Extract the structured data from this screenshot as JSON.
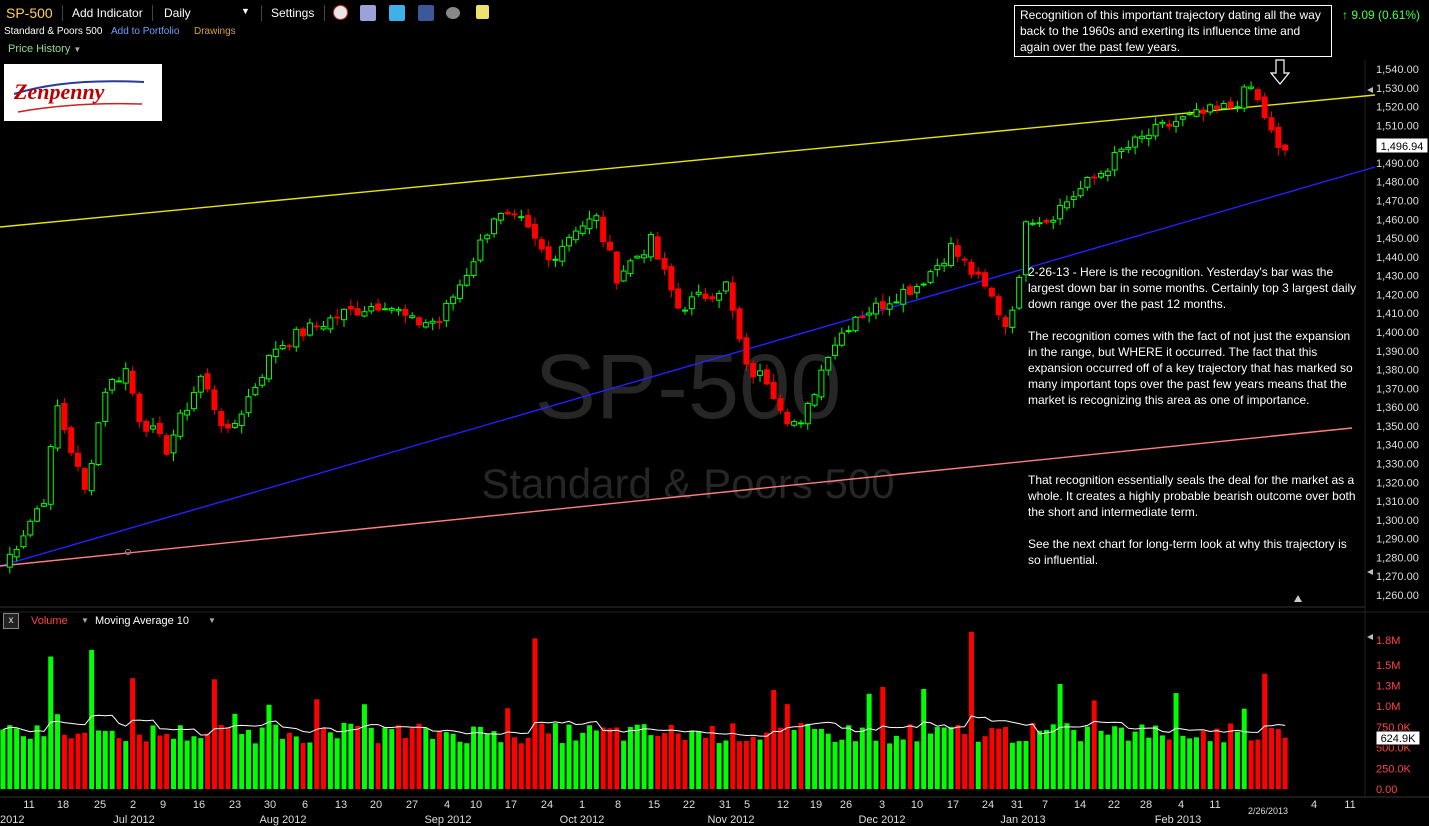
{
  "toolbar": {
    "symbol": "SP-500",
    "add_indicator": "Add Indicator",
    "period": "Daily",
    "settings": "Settings"
  },
  "subbar": {
    "name": "Standard & Poors 500",
    "add_portfolio": "Add to Portfolio",
    "drawings": "Drawings"
  },
  "price_history_label": "Price History",
  "logo_text": "Zenpenny",
  "change_text": "9.09 (0.61%)",
  "watermark": {
    "symbol": "SP-500",
    "name": "Standard & Poors 500"
  },
  "top_note": "Recognition of this important trajectory dating all the way back to the 1960s and exerting its influence time and again over the past few years.",
  "notes": [
    "2-26-13 - Here is the recognition. Yesterday's bar was the largest down bar in some months. Certainly top 3 largest daily down range over the past 12 months.",
    "The recognition comes with the fact of not just the expansion in the range, but WHERE it occurred. The fact that this expansion occurred off of a key trajectory that has marked so many important tops over the past few years means that the market is recognizing this area as one of importance.",
    "That recognition essentially seals the deal for the market as a whole. It creates a highly probable bearish outcome over both the short and intermediate term.",
    "See the next chart for long-term look at why this trajectory is so influential."
  ],
  "volume_header": {
    "close": "x",
    "label": "Volume",
    "ma": "Moving Average 10"
  },
  "colors": {
    "up": "#00ff00",
    "down": "#ff0000",
    "yellow_line": "#e6e600",
    "blue_line": "#2222ff",
    "salmon_line": "#ff7f7f",
    "ma_line": "#ffffff"
  },
  "chart_data": {
    "type": "candlestick",
    "price_axis": {
      "ticks": [
        "1,540.00",
        "1,530.00",
        "1,520.00",
        "1,510.00",
        "1,500.00",
        "1,490.00",
        "1,480.00",
        "1,470.00",
        "1,460.00",
        "1,450.00",
        "1,440.00",
        "1,430.00",
        "1,420.00",
        "1,410.00",
        "1,400.00",
        "1,390.00",
        "1,380.00",
        "1,370.00",
        "1,360.00",
        "1,350.00",
        "1,340.00",
        "1,330.00",
        "1,320.00",
        "1,310.00",
        "1,300.00",
        "1,290.00",
        "1,280.00",
        "1,270.00",
        "1,260.00"
      ],
      "last_price": "1,496.94"
    },
    "volume_axis": {
      "ticks": [
        "1.8M",
        "1.5M",
        "1.3M",
        "1.0M",
        "750.0K",
        "500.0K",
        "250.0K",
        "0.00"
      ],
      "last_ma": "624.9K"
    },
    "day_labels": [
      "11",
      "18",
      "25",
      "2",
      "9",
      "16",
      "23",
      "30",
      "6",
      "13",
      "20",
      "27",
      "4",
      "10",
      "17",
      "24",
      "1",
      "8",
      "15",
      "22",
      "31",
      "5",
      "12",
      "19",
      "26",
      "3",
      "10",
      "17",
      "24",
      "31",
      "7",
      "14",
      "22",
      "28",
      "4",
      "11",
      "2/26/2013",
      "4",
      "11"
    ],
    "month_labels": [
      "2012",
      "Jul 2012",
      "Aug 2012",
      "Sep 2012",
      "Oct 2012",
      "Nov 2012",
      "Dec 2012",
      "Jan 2013",
      "Feb 2013"
    ],
    "anchors": [
      {
        "day": 0,
        "price": 1275
      },
      {
        "day": 6,
        "price": 1312
      },
      {
        "day": 8,
        "price": 1360
      },
      {
        "day": 12,
        "price": 1315
      },
      {
        "day": 15,
        "price": 1370
      },
      {
        "day": 18,
        "price": 1380
      },
      {
        "day": 20,
        "price": 1355
      },
      {
        "day": 24,
        "price": 1338
      },
      {
        "day": 29,
        "price": 1376
      },
      {
        "day": 33,
        "price": 1345
      },
      {
        "day": 40,
        "price": 1392
      },
      {
        "day": 44,
        "price": 1400
      },
      {
        "day": 50,
        "price": 1410
      },
      {
        "day": 56,
        "price": 1416
      },
      {
        "day": 60,
        "price": 1405
      },
      {
        "day": 64,
        "price": 1406
      },
      {
        "day": 68,
        "price": 1432
      },
      {
        "day": 72,
        "price": 1462
      },
      {
        "day": 76,
        "price": 1458
      },
      {
        "day": 80,
        "price": 1438
      },
      {
        "day": 84,
        "price": 1456
      },
      {
        "day": 87,
        "price": 1460
      },
      {
        "day": 90,
        "price": 1430
      },
      {
        "day": 95,
        "price": 1448
      },
      {
        "day": 99,
        "price": 1413
      },
      {
        "day": 102,
        "price": 1418
      },
      {
        "day": 106,
        "price": 1425
      },
      {
        "day": 109,
        "price": 1380
      },
      {
        "day": 112,
        "price": 1375
      },
      {
        "day": 115,
        "price": 1355
      },
      {
        "day": 117,
        "price": 1349
      },
      {
        "day": 121,
        "price": 1390
      },
      {
        "day": 125,
        "price": 1409
      },
      {
        "day": 128,
        "price": 1413
      },
      {
        "day": 131,
        "price": 1420
      },
      {
        "day": 134,
        "price": 1425
      },
      {
        "day": 137,
        "price": 1436
      },
      {
        "day": 139,
        "price": 1445
      },
      {
        "day": 142,
        "price": 1432
      },
      {
        "day": 145,
        "price": 1418
      },
      {
        "day": 147,
        "price": 1404
      },
      {
        "day": 149,
        "price": 1426
      },
      {
        "day": 150,
        "price": 1462
      },
      {
        "day": 153,
        "price": 1460
      },
      {
        "day": 157,
        "price": 1473
      },
      {
        "day": 161,
        "price": 1485
      },
      {
        "day": 164,
        "price": 1496
      },
      {
        "day": 168,
        "price": 1505
      },
      {
        "day": 172,
        "price": 1512
      },
      {
        "day": 176,
        "price": 1516
      },
      {
        "day": 180,
        "price": 1520
      },
      {
        "day": 183,
        "price": 1530
      },
      {
        "day": 185,
        "price": 1515
      },
      {
        "day": 187,
        "price": 1496
      },
      {
        "day": 188,
        "price": 1496.94
      }
    ]
  }
}
